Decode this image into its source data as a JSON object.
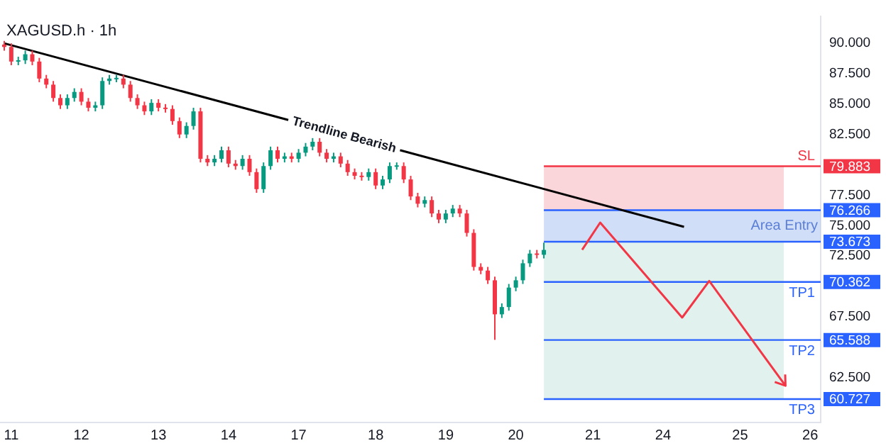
{
  "chart_data": {
    "type": "candlestick",
    "title": "XAGUSD.h · 1h",
    "categories": [
      null,
      "11",
      null,
      null,
      null,
      null,
      null,
      null,
      null,
      null,
      null,
      "12",
      null,
      null,
      null,
      null,
      null,
      null,
      null,
      null,
      null,
      null,
      "13",
      null,
      null,
      null,
      null,
      null,
      null,
      null,
      null,
      null,
      "14",
      null,
      null,
      null,
      null,
      null,
      null,
      null,
      null,
      null,
      "17",
      null,
      null,
      null,
      null,
      null,
      null,
      null,
      null,
      null,
      null,
      "18",
      null,
      null,
      null,
      null,
      null,
      null,
      null,
      null,
      null,
      "19",
      null,
      null,
      null,
      null,
      null,
      null,
      null,
      null,
      null,
      "20",
      null,
      null,
      null,
      null,
      null,
      null,
      null,
      null,
      null,
      null,
      "21",
      null,
      null,
      null,
      null,
      null,
      null,
      null,
      null,
      null,
      "24",
      null,
      null,
      null,
      null,
      null,
      null,
      null,
      null,
      null,
      null,
      "25",
      null,
      null,
      null,
      null,
      null,
      null,
      null,
      null,
      null,
      "26",
      null
    ],
    "ohlc": [
      [
        89.9,
        90.2,
        89.4,
        89.7
      ],
      [
        89.7,
        90.0,
        88.2,
        88.5
      ],
      [
        88.5,
        88.9,
        88.2,
        88.6
      ],
      [
        88.6,
        89.4,
        88.3,
        89.1
      ],
      [
        89.1,
        89.4,
        88.2,
        88.5
      ],
      [
        88.5,
        88.8,
        86.8,
        87.1
      ],
      [
        87.1,
        87.4,
        86.3,
        86.6
      ],
      [
        86.6,
        86.9,
        85.2,
        85.5
      ],
      [
        85.5,
        85.8,
        84.6,
        84.9
      ],
      [
        84.9,
        85.8,
        84.6,
        85.5
      ],
      [
        85.5,
        86.3,
        85.2,
        86.0
      ],
      [
        86.0,
        86.3,
        84.9,
        85.2
      ],
      [
        85.2,
        85.5,
        84.4,
        84.7
      ],
      [
        84.7,
        85.2,
        84.4,
        84.9
      ],
      [
        84.9,
        87.2,
        84.6,
        86.9
      ],
      [
        86.9,
        87.4,
        86.6,
        87.1
      ],
      [
        87.1,
        87.4,
        86.8,
        87.1
      ],
      [
        87.1,
        87.4,
        86.3,
        86.6
      ],
      [
        86.6,
        86.9,
        85.2,
        85.5
      ],
      [
        85.5,
        85.8,
        84.6,
        84.9
      ],
      [
        84.9,
        85.2,
        84.1,
        84.4
      ],
      [
        84.4,
        85.4,
        84.1,
        85.1
      ],
      [
        85.1,
        85.4,
        84.4,
        84.7
      ],
      [
        84.7,
        85.0,
        84.3,
        84.6
      ],
      [
        84.6,
        84.9,
        83.3,
        83.6
      ],
      [
        83.6,
        83.9,
        82.2,
        82.5
      ],
      [
        82.5,
        83.5,
        82.2,
        83.2
      ],
      [
        83.2,
        84.7,
        82.9,
        84.4
      ],
      [
        84.4,
        84.7,
        80.2,
        80.5
      ],
      [
        80.5,
        80.8,
        79.9,
        80.2
      ],
      [
        80.2,
        80.8,
        79.9,
        80.5
      ],
      [
        80.5,
        81.5,
        80.2,
        81.2
      ],
      [
        81.2,
        81.5,
        79.8,
        80.1
      ],
      [
        80.1,
        80.4,
        79.6,
        79.9
      ],
      [
        79.9,
        80.8,
        79.6,
        80.5
      ],
      [
        80.5,
        80.8,
        79.1,
        79.4
      ],
      [
        79.4,
        79.7,
        77.7,
        78.0
      ],
      [
        78.0,
        80.2,
        77.7,
        79.9
      ],
      [
        79.9,
        81.5,
        79.6,
        81.2
      ],
      [
        81.2,
        81.5,
        80.2,
        80.5
      ],
      [
        80.5,
        81.0,
        80.2,
        80.7
      ],
      [
        80.7,
        81.0,
        80.2,
        80.5
      ],
      [
        80.5,
        81.3,
        80.2,
        81.0
      ],
      [
        81.0,
        81.8,
        80.7,
        81.5
      ],
      [
        81.5,
        82.2,
        81.2,
        81.9
      ],
      [
        81.9,
        82.2,
        80.7,
        81.0
      ],
      [
        81.0,
        81.3,
        80.2,
        80.5
      ],
      [
        80.5,
        81.0,
        80.2,
        80.7
      ],
      [
        80.7,
        81.0,
        79.8,
        80.1
      ],
      [
        80.1,
        80.4,
        79.1,
        79.4
      ],
      [
        79.4,
        79.7,
        78.8,
        79.1
      ],
      [
        79.1,
        79.4,
        78.7,
        79.0
      ],
      [
        79.0,
        79.7,
        78.7,
        79.4
      ],
      [
        79.4,
        79.7,
        78.0,
        78.3
      ],
      [
        78.3,
        79.1,
        78.0,
        78.8
      ],
      [
        78.8,
        80.2,
        78.5,
        79.9
      ],
      [
        79.9,
        80.2,
        79.6,
        79.9
      ],
      [
        79.9,
        80.2,
        78.5,
        78.8
      ],
      [
        78.8,
        79.1,
        77.1,
        77.4
      ],
      [
        77.4,
        77.7,
        76.5,
        76.8
      ],
      [
        76.8,
        77.4,
        76.5,
        77.1
      ],
      [
        77.1,
        77.4,
        75.7,
        76.0
      ],
      [
        76.0,
        76.3,
        75.2,
        75.5
      ],
      [
        75.5,
        76.3,
        75.2,
        76.0
      ],
      [
        76.0,
        76.7,
        75.7,
        76.4
      ],
      [
        76.4,
        76.7,
        75.7,
        76.0
      ],
      [
        76.0,
        76.3,
        74.1,
        74.4
      ],
      [
        74.4,
        74.7,
        71.3,
        71.6
      ],
      [
        71.6,
        71.9,
        71.0,
        71.3
      ],
      [
        71.3,
        71.6,
        70.2,
        70.5
      ],
      [
        70.5,
        70.8,
        65.6,
        67.7
      ],
      [
        67.7,
        68.6,
        67.4,
        68.3
      ],
      [
        68.3,
        70.2,
        68.0,
        69.9
      ],
      [
        69.9,
        70.8,
        69.6,
        70.5
      ],
      [
        70.5,
        72.2,
        70.2,
        71.9
      ],
      [
        71.9,
        73.0,
        71.6,
        72.7
      ],
      [
        72.7,
        73.0,
        72.3,
        72.6
      ],
      [
        72.6,
        73.6,
        72.3,
        73.0
      ],
      null,
      null,
      null,
      null,
      null,
      null,
      null,
      null,
      null,
      null,
      null,
      null,
      null,
      null,
      null,
      null,
      null,
      null,
      null,
      null,
      null,
      null,
      null,
      null,
      null,
      null,
      null,
      null,
      null,
      null,
      null,
      null,
      null,
      null,
      null,
      null,
      null,
      null,
      null
    ],
    "series": [
      {
        "type": "line",
        "color": "#000000",
        "values": [
          90.0,
          null,
          null,
          null,
          null,
          null,
          null,
          null,
          null,
          null,
          null,
          null,
          null,
          null,
          null,
          null,
          null,
          null,
          null,
          null,
          null,
          null,
          null,
          null,
          null,
          null,
          null,
          null,
          null,
          null,
          null,
          null,
          null,
          null,
          null,
          null,
          null,
          null,
          null,
          null,
          null,
          null,
          null,
          null,
          null,
          null,
          null,
          null,
          null,
          null,
          null,
          null,
          null,
          null,
          null,
          null,
          null,
          null,
          null,
          null,
          null,
          null,
          null,
          null,
          null,
          null,
          null,
          null,
          null,
          null,
          null,
          null,
          null,
          null,
          null,
          null,
          null,
          null,
          null,
          null,
          null,
          null,
          null,
          null,
          null,
          null,
          null,
          null,
          null,
          null,
          null,
          null,
          null,
          null,
          null,
          null,
          null,
          74.9,
          null,
          null,
          null,
          null,
          null,
          null,
          null,
          null,
          null,
          null,
          null,
          null,
          null,
          null,
          null,
          null,
          null,
          null,
          null
        ]
      }
    ],
    "ylim": [
      58.8,
      92.2
    ],
    "yticks": [
      {
        "value": 62.5,
        "label": "62.500"
      },
      {
        "value": 67.5,
        "label": "67.500"
      },
      {
        "value": 72.5,
        "label": "72.500"
      },
      {
        "value": 75,
        "label": "75.000"
      },
      {
        "value": 77.5,
        "label": "77.500"
      },
      {
        "value": 82.5,
        "label": "82.500"
      },
      {
        "value": 85,
        "label": "85.000"
      },
      {
        "value": 87.5,
        "label": "87.500"
      },
      {
        "value": 90,
        "label": "90.000"
      }
    ],
    "bands": [
      {
        "axis": "y",
        "from": 76.266,
        "to": 79.883,
        "color": "#f7b9bf"
      },
      {
        "axis": "y",
        "from": 60.727,
        "to": 73.673,
        "color": "#cde9e2"
      },
      {
        "axis": "y",
        "from": 73.673,
        "to": 76.266,
        "color": "#b3c8f2",
        "label": "Area Entry"
      }
    ],
    "ref_lines": [
      {
        "axis": "y",
        "value": 79.883,
        "label": "79.883",
        "color": "#f23645"
      },
      {
        "axis": "y",
        "value": 76.266,
        "label": "76.266",
        "color": "#2962ff"
      },
      {
        "axis": "y",
        "value": 73.673,
        "label": "73.673",
        "color": "#2962ff"
      },
      {
        "axis": "y",
        "value": 70.362,
        "label": "70.362",
        "color": "#2962ff"
      },
      {
        "axis": "y",
        "value": 65.588,
        "label": "65.588",
        "color": "#2962ff"
      },
      {
        "axis": "y",
        "value": 60.727,
        "label": "60.727",
        "color": "#2962ff"
      }
    ],
    "annotations": [
      "Trendline Bearish",
      {
        "text": "SL",
        "y": 79.883
      },
      {
        "text": "TP1",
        "y": 70.362
      },
      {
        "text": "TP2",
        "y": 65.588
      },
      {
        "text": "TP3",
        "y": 60.727
      }
    ]
  }
}
